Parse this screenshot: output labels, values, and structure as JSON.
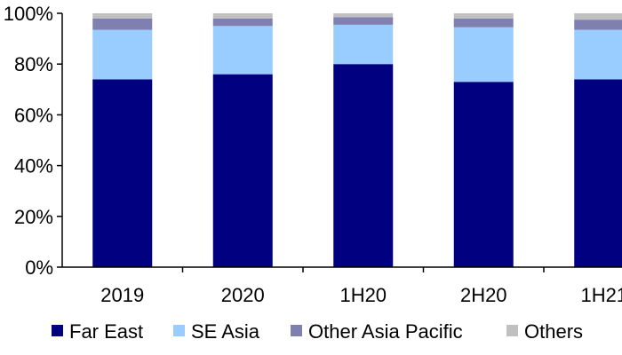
{
  "chart_data": {
    "type": "bar",
    "stacked": true,
    "title": "",
    "xlabel": "",
    "ylabel": "",
    "ylim": [
      0,
      100
    ],
    "y_ticks": [
      "0%",
      "20%",
      "40%",
      "60%",
      "80%",
      "100%"
    ],
    "categories": [
      "2019",
      "2020",
      "1H20",
      "2H20",
      "1H21"
    ],
    "series": [
      {
        "name": "Far East",
        "color": "#000080",
        "values": [
          74,
          76,
          80,
          73,
          74
        ]
      },
      {
        "name": "SE Asia",
        "color": "#99CCFF",
        "values": [
          19.5,
          19,
          15.5,
          21.5,
          19.5
        ]
      },
      {
        "name": "Other Asia Pacific",
        "color": "#8080B0",
        "values": [
          4.5,
          3,
          3,
          3.5,
          4
        ]
      },
      {
        "name": "Others",
        "color": "#C0C0C0",
        "values": [
          2,
          2,
          1.5,
          2,
          2.5
        ]
      }
    ],
    "grid": false,
    "legend_position": "bottom"
  }
}
